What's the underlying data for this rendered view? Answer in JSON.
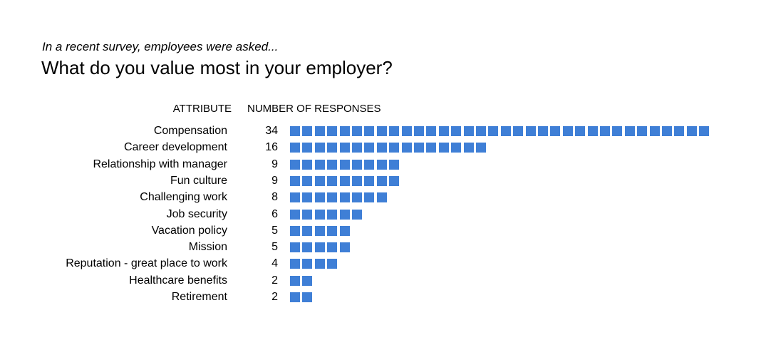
{
  "header": {
    "subtitle": "In a recent survey, employees were asked...",
    "title": "What do you value most in your employer?"
  },
  "columns": {
    "attribute": "ATTRIBUTE",
    "responses": "NUMBER OF RESPONSES"
  },
  "colors": {
    "square": "#3f7fd6",
    "text": "#000000"
  },
  "chart_data": {
    "type": "bar",
    "title": "What do you value most in your employer?",
    "subtitle": "In a recent survey, employees were asked...",
    "xlabel": "NUMBER OF RESPONSES",
    "ylabel": "ATTRIBUTE",
    "categories": [
      "Compensation",
      "Career development",
      "Relationship with manager",
      "Fun culture",
      "Challenging work",
      "Job security",
      "Vacation policy",
      "Mission",
      "Reputation - great place to work",
      "Healthcare benefits",
      "Retirement"
    ],
    "values": [
      34,
      16,
      9,
      9,
      8,
      6,
      5,
      5,
      4,
      2,
      2
    ],
    "orientation": "horizontal",
    "grid": false,
    "legend": "none"
  }
}
